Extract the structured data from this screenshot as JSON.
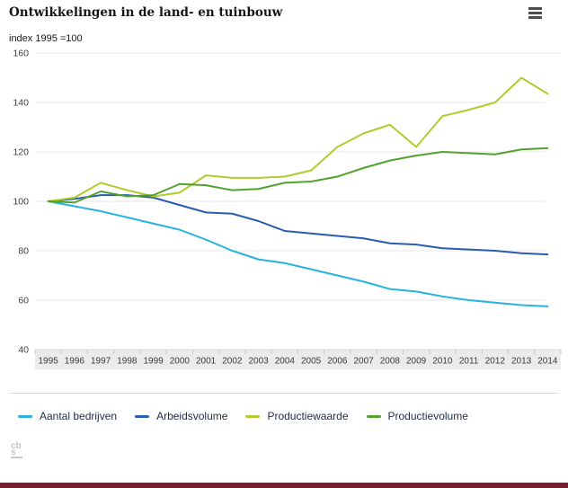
{
  "header": {
    "title": "Ontwikkelingen in de land- en tuinbouw",
    "menu_icon": "hamburger-icon"
  },
  "chart": {
    "unit_label": "index 1995 =100"
  },
  "chart_data": {
    "type": "line",
    "title": "Ontwikkelingen in de land- en tuinbouw",
    "ylabel": "index 1995 =100",
    "xlabel": "",
    "grid": true,
    "legend_position": "bottom",
    "ylim": [
      40,
      160
    ],
    "yticks": [
      40,
      60,
      80,
      100,
      120,
      140,
      160
    ],
    "x": [
      1995,
      1996,
      1997,
      1998,
      1999,
      2000,
      2001,
      2002,
      2003,
      2004,
      2005,
      2006,
      2007,
      2008,
      2009,
      2010,
      2011,
      2012,
      2013,
      2014
    ],
    "series": [
      {
        "name": "Aantal bedrijven",
        "color": "#29b2e0",
        "values": [
          100,
          98,
          96,
          93.5,
          91,
          88.5,
          84.5,
          80,
          76.5,
          75,
          72.5,
          70,
          67.5,
          64.5,
          63.5,
          61.5,
          60,
          59,
          58,
          57.5
        ]
      },
      {
        "name": "Arbeidsvolume",
        "color": "#2a5cb0",
        "values": [
          100,
          101,
          102.5,
          102.5,
          101.5,
          98.5,
          95.5,
          95,
          92,
          88,
          87,
          86,
          85,
          83,
          82.5,
          81,
          80.5,
          80,
          79,
          78.5
        ]
      },
      {
        "name": "Productiewaarde",
        "color": "#b2cb2e",
        "values": [
          100,
          101.5,
          107.5,
          104.5,
          102,
          103.5,
          110.5,
          109.5,
          109.5,
          110,
          112.5,
          122,
          127.5,
          131,
          122,
          134.5,
          137,
          140,
          150,
          143.5
        ]
      },
      {
        "name": "Productievolume",
        "color": "#52a32e",
        "values": [
          100,
          99.5,
          104,
          102,
          102.5,
          107,
          106.5,
          104.5,
          105,
          107.5,
          108,
          110,
          113.5,
          116.5,
          118.5,
          120,
          119.5,
          119,
          121,
          121.5
        ]
      }
    ]
  },
  "footer": {
    "logo_row1": "cb",
    "logo_row2": "s"
  },
  "colors": {
    "gridline": "#e7e7e7",
    "axis_band": "#ebebeb",
    "axis_tick": "#c8c8c8",
    "axis_text": "#3c3c3c",
    "footer_bar": "#7a1c30"
  }
}
